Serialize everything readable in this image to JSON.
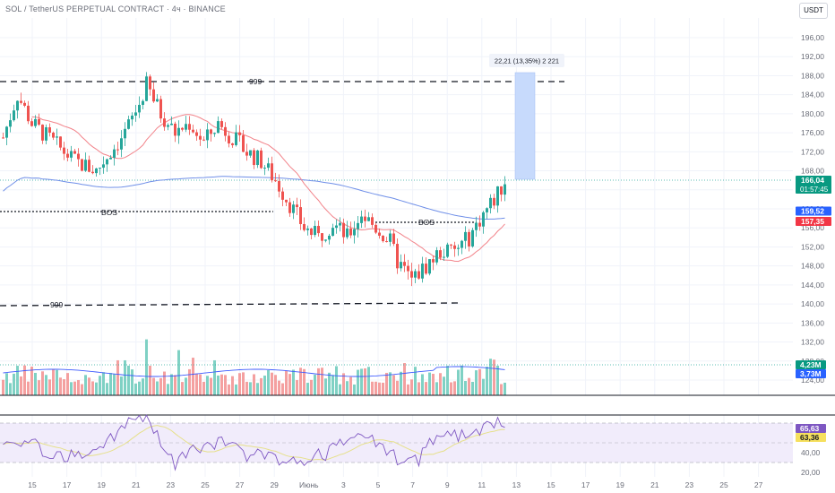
{
  "header": {
    "title": "SOL / TetherUS PERPETUAL CONTRACT · 4ч · BINANCE",
    "currency_button": "USDT"
  },
  "colors": {
    "up": "#26a69a",
    "down": "#ef5350",
    "ma_fast": "#f2838a",
    "ma_slow": "#6f8fe8",
    "measure": "#c7dafc",
    "rsi": "#7e57c2",
    "rsi_ma": "#e6e08a",
    "rsi_band": "#f1ecfb",
    "vol_ma": "#3d5afe"
  },
  "price_axis": {
    "ticks": [
      "196,00",
      "192,00",
      "188,00",
      "184,00",
      "180,00",
      "176,00",
      "172,00",
      "168,00",
      "164,00",
      "160,00",
      "156,00",
      "152,00",
      "148,00",
      "144,00",
      "140,00",
      "136,00",
      "132,00",
      "128,00",
      "124,00"
    ],
    "badges": [
      {
        "value": "166,04",
        "sub": "01:57:45",
        "color": "#089981",
        "price": 166.04
      },
      {
        "value": "159,52",
        "sub": "",
        "color": "#2962ff",
        "price": 159.52
      },
      {
        "value": "157,35",
        "sub": "",
        "color": "#f23645",
        "price": 157.35
      }
    ]
  },
  "volume_badges": [
    {
      "value": "4,23M",
      "color": "#089981"
    },
    {
      "value": "3,73M",
      "color": "#2962ff"
    }
  ],
  "rsi_axis": {
    "ticks": [
      "60,00",
      "40,00",
      "20,00"
    ],
    "badges": [
      {
        "value": "65,63",
        "color": "#7e57c2"
      },
      {
        "value": "63,36",
        "color": "#f6e05e"
      }
    ]
  },
  "time_axis": [
    "15",
    "17",
    "19",
    "21",
    "23",
    "25",
    "27",
    "29",
    "Июнь",
    "3",
    "5",
    "7",
    "9",
    "11",
    "13",
    "15",
    "17",
    "19",
    "21",
    "23",
    "25",
    "27"
  ],
  "annotations": {
    "top_level_label": "999",
    "bottom_level_label": "999",
    "bos_left": "BOS",
    "bos_right": "BOS",
    "measure_label": "22,21 (13,35%) 2 221"
  },
  "chart_data": {
    "type": "candlestick",
    "title": "SOL / TetherUS PERPETUAL CONTRACT · 4ч · BINANCE",
    "y_range": [
      122,
      200
    ],
    "levels": {
      "top_999": 187,
      "bottom_999": 140,
      "bos_left": 162,
      "bos_right": 156.5,
      "measure_from": 166.04,
      "measure_to": 188.25
    },
    "last_price": 166.04,
    "ma_fast_last": 157.35,
    "ma_slow_last": 159.52,
    "price_path": [
      [
        0,
        175
      ],
      [
        4,
        184
      ],
      [
        8,
        178
      ],
      [
        14,
        174
      ],
      [
        20,
        170
      ],
      [
        26,
        168
      ],
      [
        30,
        172
      ],
      [
        34,
        176
      ],
      [
        38,
        182
      ],
      [
        40,
        186
      ],
      [
        44,
        180
      ],
      [
        48,
        176
      ],
      [
        52,
        178
      ],
      [
        56,
        174
      ],
      [
        60,
        178
      ],
      [
        64,
        175
      ],
      [
        68,
        172
      ],
      [
        72,
        170
      ],
      [
        76,
        166
      ],
      [
        80,
        161
      ],
      [
        84,
        156
      ],
      [
        88,
        154
      ],
      [
        92,
        157
      ],
      [
        96,
        154
      ],
      [
        100,
        159
      ],
      [
        104,
        156
      ],
      [
        108,
        153
      ],
      [
        110,
        149
      ],
      [
        114,
        145
      ],
      [
        118,
        148
      ],
      [
        122,
        151
      ],
      [
        126,
        151
      ],
      [
        130,
        154
      ],
      [
        134,
        159
      ],
      [
        138,
        163
      ],
      [
        140,
        166
      ]
    ],
    "volume_ma": 3.73,
    "volume_last": 4.23,
    "rsi_last": 65.63,
    "rsi_ma_last": 63.36
  }
}
